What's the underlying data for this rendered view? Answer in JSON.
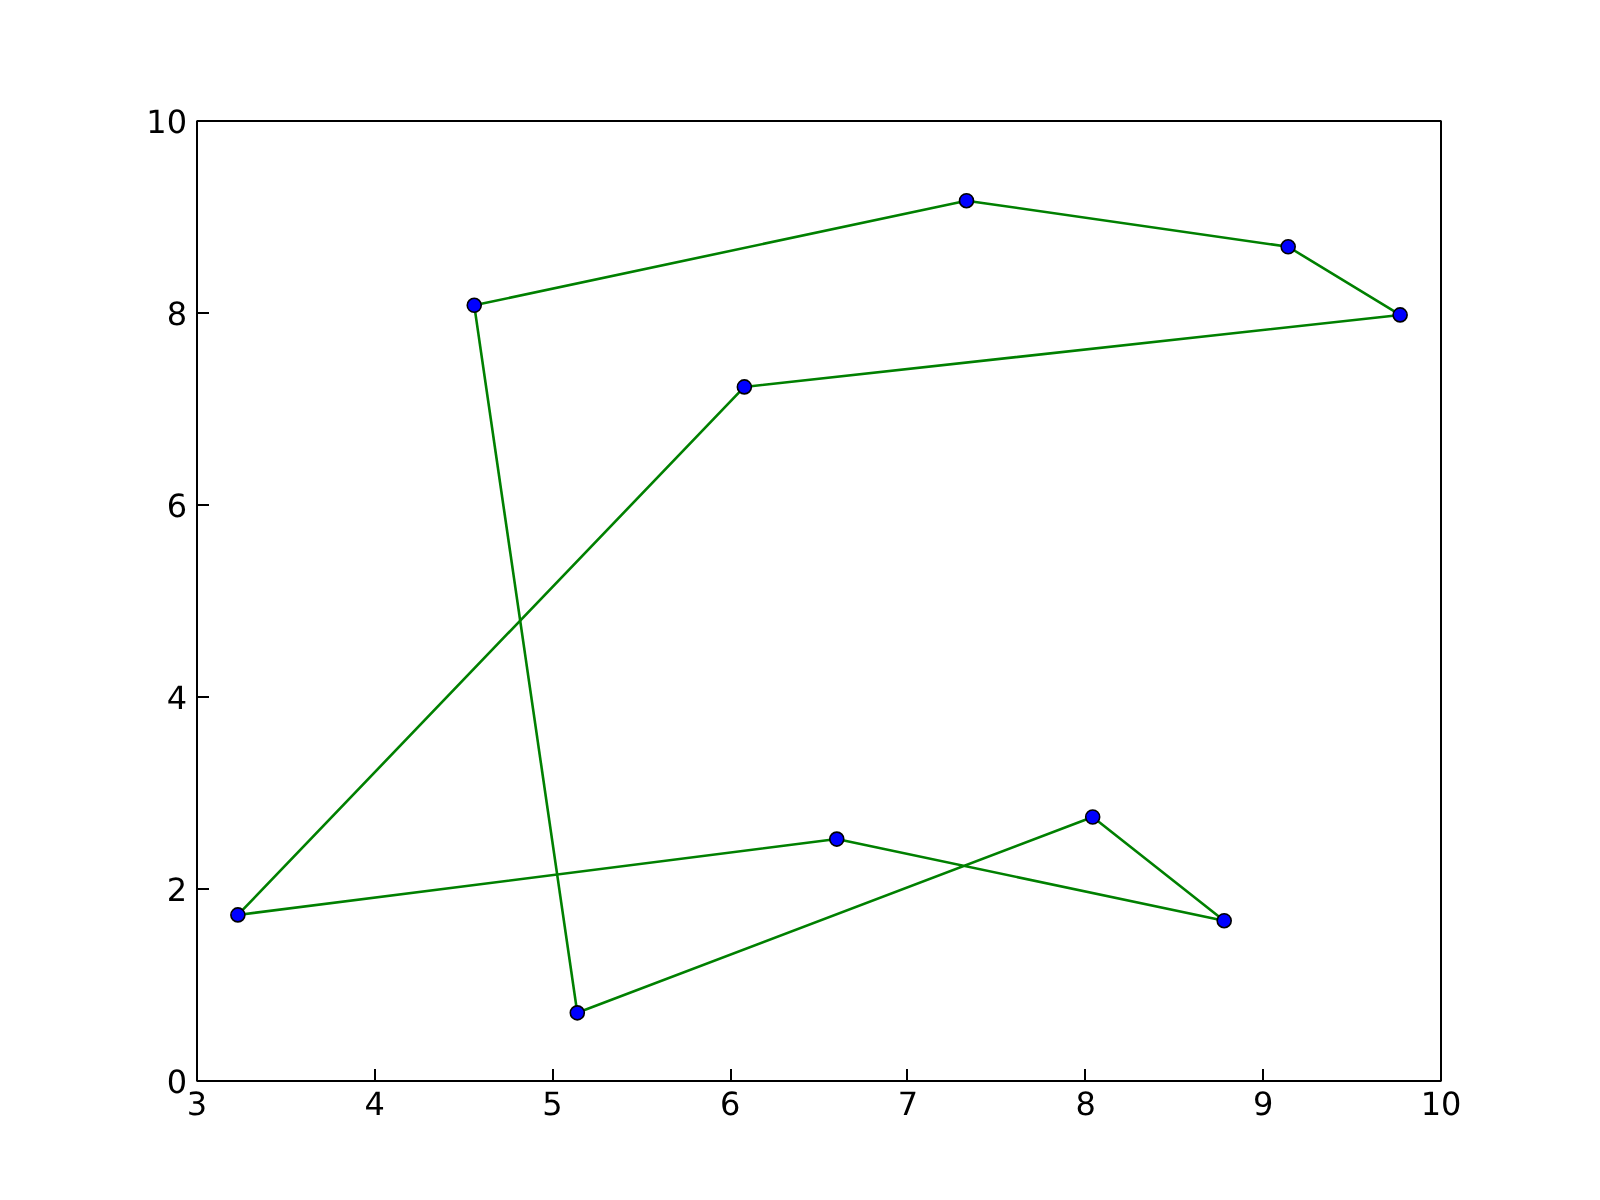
{
  "chart_data": {
    "type": "line",
    "xlim": [
      3,
      10
    ],
    "ylim": [
      0,
      10
    ],
    "xticks": [
      3,
      4,
      5,
      6,
      7,
      8,
      9,
      10
    ],
    "yticks": [
      0,
      2,
      4,
      6,
      8,
      10
    ],
    "grid": false,
    "series": [
      {
        "color": "#008000",
        "marker": "none",
        "line_style": "solid",
        "x": [
          4.56,
          7.33,
          9.14,
          9.77,
          6.08,
          3.23,
          6.6,
          8.78,
          8.04,
          5.14
        ],
        "values": [
          8.08,
          9.17,
          8.69,
          7.98,
          7.23,
          1.73,
          2.52,
          1.67,
          2.75,
          0.71
        ]
      },
      {
        "color": "#008000",
        "marker": "none",
        "line_style": "solid",
        "x": [
          5.14,
          4.56
        ],
        "values": [
          0.71,
          8.08
        ]
      },
      {
        "type": "scatter",
        "color": "#0000ff",
        "marker": "circle",
        "x": [
          4.56,
          7.33,
          9.14,
          9.77,
          6.08,
          3.23,
          6.6,
          8.78,
          8.04,
          5.14
        ],
        "values": [
          8.08,
          9.17,
          8.69,
          7.98,
          7.23,
          1.73,
          2.52,
          1.67,
          2.75,
          0.71
        ]
      }
    ]
  }
}
